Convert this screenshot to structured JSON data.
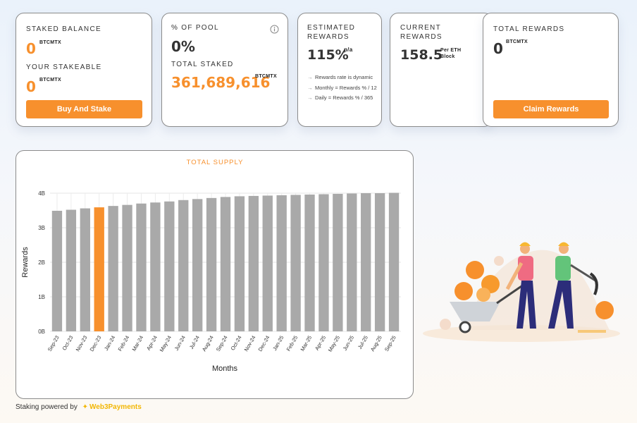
{
  "cards": {
    "staked_balance": {
      "label": "STAKED BALANCE",
      "value": "0",
      "unit": "BTCMTX"
    },
    "your_stakeable": {
      "label": "YOUR STAKEABLE",
      "value": "0",
      "unit": "BTCMTX"
    },
    "buy_button": "Buy And Stake",
    "pool": {
      "label": "% OF POOL",
      "value": "0%",
      "info_icon": "info-icon"
    },
    "total_staked": {
      "label": "TOTAL STAKED",
      "value": "361,689,616",
      "unit": "BTCMTX"
    },
    "estimated": {
      "label_line1": "ESTIMATED",
      "label_line2": "REWARDS",
      "value": "115%",
      "suffix": "p/a",
      "notes": [
        "Rewards rate is dynamic",
        "Monthly = Rewards % / 12",
        "Daily = Rewards % / 365"
      ]
    },
    "current": {
      "label_line1": "CURRENT",
      "label_line2": "REWARDS",
      "value": "158.5",
      "unit_line1": "Per ETH",
      "unit_line2": "Block"
    },
    "total_rewards": {
      "label": "TOTAL REWARDS",
      "value": "0",
      "unit": "BTCMTX"
    },
    "claim_button": "Claim Rewards"
  },
  "colors": {
    "accent": "#f7902d",
    "bar": "#a9a9a9",
    "brand": "#f2b705"
  },
  "chart_data": {
    "type": "bar",
    "title": "TOTAL SUPPLY",
    "xlabel": "Months",
    "ylabel": "Rewards",
    "ylim": [
      0,
      4
    ],
    "y_ticks": [
      "0B",
      "1B",
      "2B",
      "3B",
      "4B"
    ],
    "categories": [
      "Sep-23",
      "Oct-23",
      "Nov-23",
      "Dec-23",
      "Jan-24",
      "Feb-24",
      "Mar-24",
      "Apr-24",
      "May-24",
      "Jun-24",
      "Jul-24",
      "Aug-24",
      "Sep-24",
      "Oct-24",
      "Nov-24",
      "Dec-24",
      "Jan-25",
      "Feb-25",
      "Mar-25",
      "Apr-25",
      "May-25",
      "Jun-25",
      "Jul-25",
      "Aug-25",
      "Sep-25"
    ],
    "values": [
      3.49,
      3.52,
      3.56,
      3.59,
      3.63,
      3.66,
      3.7,
      3.73,
      3.76,
      3.8,
      3.83,
      3.86,
      3.89,
      3.91,
      3.92,
      3.93,
      3.94,
      3.95,
      3.96,
      3.97,
      3.98,
      3.99,
      4.0,
      4.0,
      4.01
    ],
    "highlight_index": 3,
    "grid": true
  },
  "footer": {
    "text": "Staking powered by",
    "brand": "Web3Payments"
  }
}
